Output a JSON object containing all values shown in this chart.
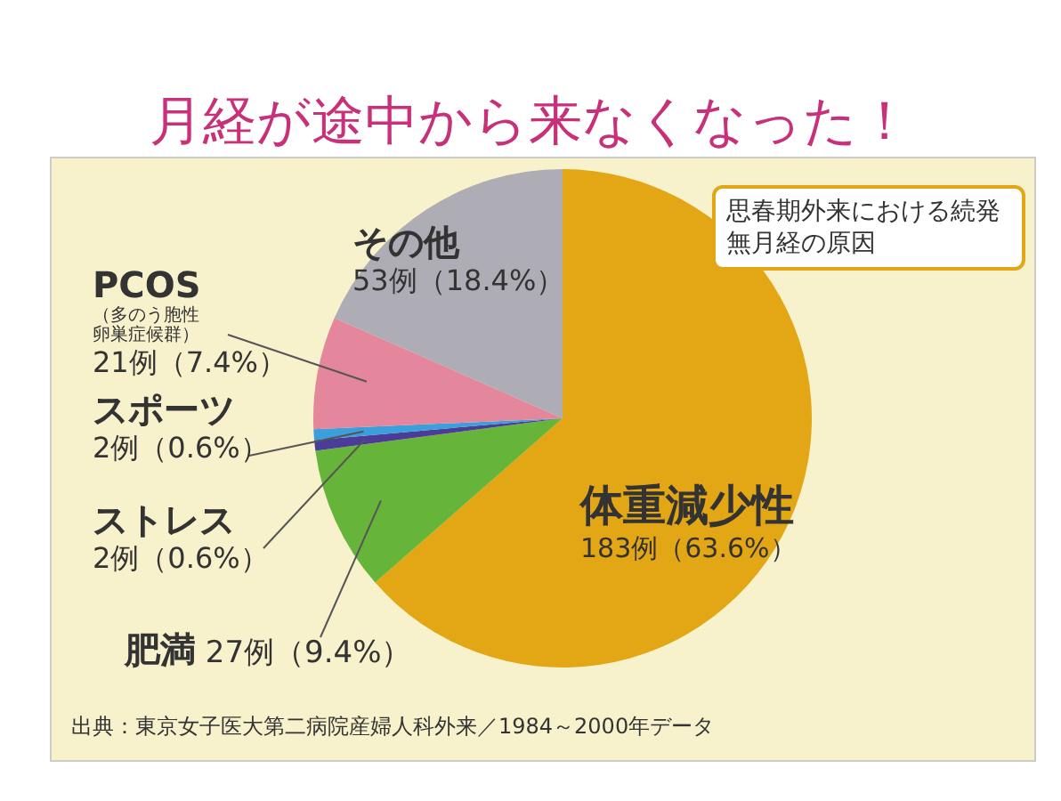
{
  "chart_data": {
    "type": "pie",
    "title": "月経が途中から来なくなった！",
    "subtitle": "思春期外来における続発無月経の原因",
    "categories": [
      "体重減少性",
      "肥満",
      "ストレス",
      "スポーツ",
      "PCOS",
      "その他"
    ],
    "values": [
      183,
      27,
      2,
      2,
      21,
      53
    ],
    "colors": [
      "#e3a614",
      "#66b43a",
      "#4a3c98",
      "#3a9fdc",
      "#e4869c",
      "#aeacb4"
    ],
    "value_labels": [
      "183例（63.6%）",
      "27例（9.4%）",
      "2例（0.6%）",
      "2例（0.6%）",
      "21例（7.4%）",
      "53例（18.4%）"
    ],
    "annotations": [
      "（多のう胞性卵巣症候群）",
      "出典：東京女子医大第二病院産婦人科外来／1984～2000年データ"
    ],
    "legend": false
  }
}
